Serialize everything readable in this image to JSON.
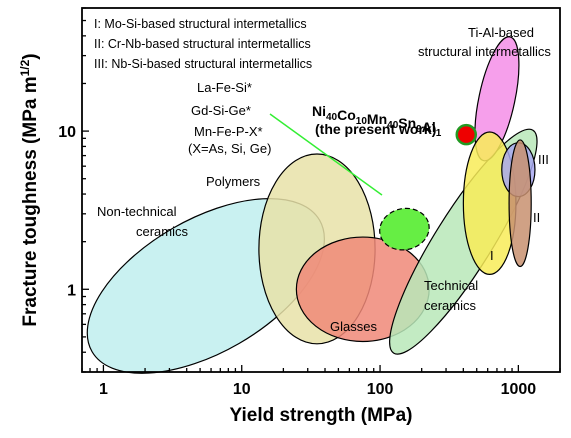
{
  "chart_data": {
    "type": "ashby-plot",
    "title": "",
    "xlabel": "Yield strength (MPa)",
    "ylabel": "Fracture toughness (MPa m1/2)",
    "ylabel_parts": {
      "main": "Fracture toughness (MPa m",
      "sup": "1/2",
      "close": ")"
    },
    "x_scale": "log",
    "y_scale": "log",
    "xlim": [
      0.7,
      2000
    ],
    "ylim": [
      0.3,
      60
    ],
    "x_ticks": [
      1,
      10,
      100,
      1000
    ],
    "x_tick_labels": [
      "1",
      "10",
      "100",
      "1000"
    ],
    "y_ticks": [
      1,
      10
    ],
    "y_tick_labels": [
      "1",
      "10"
    ],
    "legend_notes": [
      "I: Mo-Si-based structural intermetallics",
      "II: Cr-Nb-based structural intermetallics",
      "III: Nb-Si-based structural intermetallics"
    ],
    "regions": [
      {
        "name": "non-technical-ceramics",
        "label_lines": [
          "Non-technical",
          "ceramics"
        ],
        "color": "#bfeeee",
        "center": [
          5.5,
          1.05
        ],
        "rx_dec": 0.95,
        "ry_dec": 0.42,
        "angle": -30
      },
      {
        "name": "polymers",
        "label_lines": [
          "Polymers"
        ],
        "color": "#e8e2a8",
        "center": [
          35,
          1.8
        ],
        "rx_dec": 0.42,
        "ry_dec": 0.6,
        "angle": 0
      },
      {
        "name": "glasses",
        "label_lines": [
          "Glasses"
        ],
        "color": "#f08878",
        "center": [
          75,
          1.0
        ],
        "rx_dec": 0.48,
        "ry_dec": 0.33,
        "angle": 0
      },
      {
        "name": "technical-ceramics",
        "label_lines": [
          "Technical",
          "ceramics"
        ],
        "color": "#b8e8b8",
        "center": [
          400,
          2.0
        ],
        "rx_dec": 0.95,
        "ry_dec": 0.18,
        "angle": -58
      },
      {
        "name": "ti-al-intermetallics",
        "label_lines": [
          "Ti-Al-based",
          "structural intermetallics"
        ],
        "color": "#f48ee8",
        "center": [
          700,
          16
        ],
        "rx_dec": 0.13,
        "ry_dec": 0.4,
        "angle": 12
      },
      {
        "name": "mo-si-intermetallics-i",
        "label_lines": [
          "I"
        ],
        "color": "#f8ec58",
        "center": [
          620,
          3.5
        ],
        "rx_dec": 0.19,
        "ry_dec": 0.45,
        "angle": 0
      },
      {
        "name": "nb-si-intermetallics-iii",
        "label_lines": [
          "III"
        ],
        "color": "#a8a8f0",
        "center": [
          1000,
          5.7
        ],
        "rx_dec": 0.12,
        "ry_dec": 0.17,
        "angle": 0
      },
      {
        "name": "cr-nb-intermetallics-ii",
        "label_lines": [
          "II"
        ],
        "color": "#c89070",
        "center": [
          1030,
          3.5
        ],
        "rx_dec": 0.08,
        "ry_dec": 0.4,
        "angle": 0
      }
    ],
    "magnetocaloric": {
      "label_lines": [
        "La-Fe-Si*",
        "Gd-Si-Ge*",
        "Mn-Fe-P-X*",
        "(X=As, Si, Ge)"
      ],
      "color": "#66ee44",
      "center": [
        150,
        2.4
      ],
      "rx_dec": 0.18,
      "ry_dec": 0.13,
      "angle": -12
    },
    "present_work": {
      "label_sub": [
        {
          "t": "Ni",
          "s": "40"
        },
        {
          "t": "Co",
          "s": "10"
        },
        {
          "t": "Mn",
          "s": "40"
        },
        {
          "t": "Sn",
          "s": "9"
        },
        {
          "t": "Al",
          "s": "1"
        }
      ],
      "label_line2": "(the present work)",
      "x": 420,
      "y": 9.5,
      "color": "#ee0000",
      "edge_color": "#229922"
    }
  }
}
